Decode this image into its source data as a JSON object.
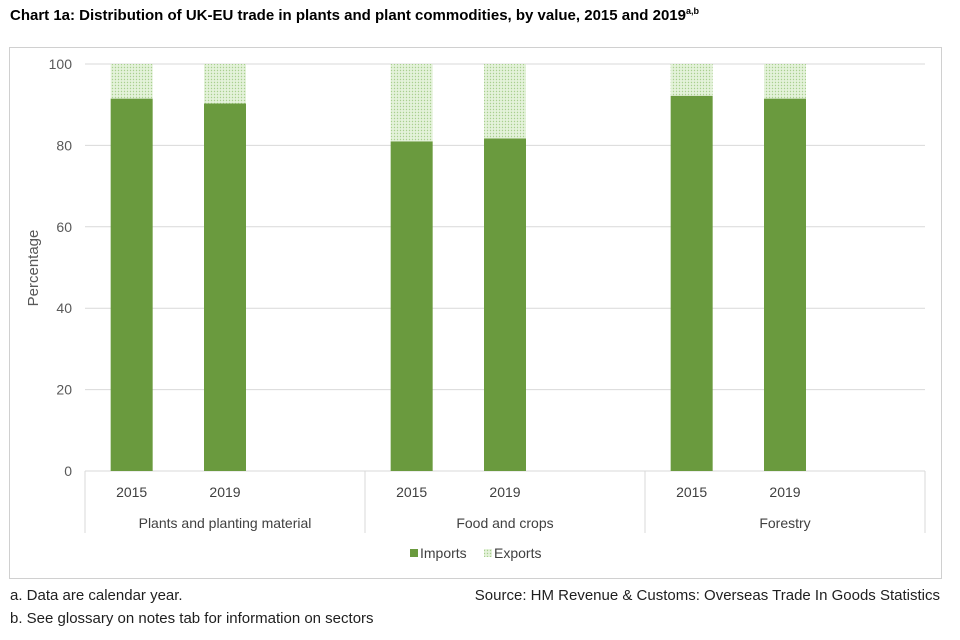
{
  "title": "Chart 1a: Distribution of UK-EU trade in plants and plant commodities, by value, 2015 and 2019",
  "title_sup": "a,b",
  "notes": [
    "a. Data are calendar year.",
    "b. See glossary on notes tab for information on sectors"
  ],
  "source": "Source: HM Revenue & Customs: Overseas Trade In Goods Statistics",
  "colors": {
    "imports": "#6a9a3e",
    "exports": "#d6ebc8",
    "grid": "#d9d9d9"
  },
  "chart_data": {
    "type": "bar",
    "stacked": true,
    "title": "Chart 1a: Distribution of UK-EU trade in plants and plant commodities, by value, 2015 and 2019",
    "ylabel": "Percentage",
    "xlabel": "",
    "ylim": [
      0,
      100
    ],
    "yticks": [
      0,
      20,
      40,
      60,
      80,
      100
    ],
    "groups": [
      "Plants and planting material",
      "Food and crops",
      "Forestry"
    ],
    "categories": [
      "2015",
      "2019",
      "2015",
      "2019",
      "2015",
      "2019"
    ],
    "series": [
      {
        "name": "Imports",
        "values": [
          91.5,
          90.3,
          81.0,
          81.7,
          92.2,
          91.5
        ]
      },
      {
        "name": "Exports",
        "values": [
          8.5,
          9.7,
          19.0,
          18.3,
          7.8,
          8.5
        ]
      }
    ],
    "legend": "bottom"
  }
}
